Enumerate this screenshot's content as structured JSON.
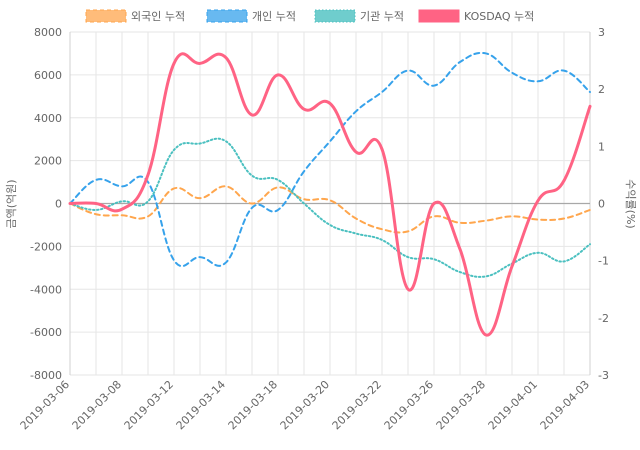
{
  "chart_data": {
    "type": "line",
    "title": "",
    "x": [
      "2019-03-06",
      "2019-03-07",
      "2019-03-08",
      "2019-03-11",
      "2019-03-12",
      "2019-03-13",
      "2019-03-14",
      "2019-03-15",
      "2019-03-18",
      "2019-03-19",
      "2019-03-20",
      "2019-03-21",
      "2019-03-22",
      "2019-03-25",
      "2019-03-26",
      "2019-03-27",
      "2019-03-28",
      "2019-03-29",
      "2019-04-01",
      "2019-04-02",
      "2019-04-03"
    ],
    "x_tick_labels": [
      "2019-03-06",
      "2019-03-08",
      "2019-03-12",
      "2019-03-14",
      "2019-03-18",
      "2019-03-20",
      "2019-03-22",
      "2019-03-26",
      "2019-03-28",
      "2019-04-01",
      "2019-04-03"
    ],
    "y_left": {
      "label": "금액(억원)",
      "min": -8000,
      "max": 8000,
      "ticks": [
        -8000,
        -6000,
        -4000,
        -2000,
        0,
        2000,
        4000,
        6000,
        8000
      ]
    },
    "y_right": {
      "label": "수익률(%)",
      "min": -3,
      "max": 3,
      "ticks": [
        -3,
        -2,
        -1,
        0,
        1,
        2,
        3
      ]
    },
    "series": [
      {
        "name": "외국인 누적",
        "axis": "left",
        "color": "#ffa64d",
        "style": "dashed",
        "values": [
          0,
          -500,
          -550,
          -600,
          700,
          250,
          800,
          0,
          750,
          200,
          150,
          -700,
          -1200,
          -1300,
          -600,
          -900,
          -800,
          -600,
          -750,
          -700,
          -300
        ]
      },
      {
        "name": "개인 누적",
        "axis": "left",
        "color": "#36a2eb",
        "style": "dashed",
        "values": [
          0,
          1100,
          800,
          1000,
          -2650,
          -2500,
          -2750,
          -200,
          -300,
          1500,
          2900,
          4300,
          5200,
          6200,
          5500,
          6600,
          7000,
          6100,
          5700,
          6200,
          5200
        ]
      },
      {
        "name": "기관 누적",
        "axis": "left",
        "color": "#4bc0c0",
        "style": "dotted",
        "values": [
          0,
          -300,
          100,
          100,
          2500,
          2800,
          2900,
          1300,
          1100,
          0,
          -1000,
          -1400,
          -1700,
          -2500,
          -2600,
          -3200,
          -3400,
          -2800,
          -2300,
          -2700,
          -1900
        ]
      },
      {
        "name": "KOSDAQ 누적",
        "axis": "right",
        "color": "#ff6384",
        "style": "solid",
        "values": [
          0,
          0,
          -0.1,
          0.5,
          2.45,
          2.45,
          2.55,
          1.55,
          2.25,
          1.65,
          1.75,
          0.9,
          0.95,
          -1.5,
          0.0,
          -0.8,
          -2.3,
          -1.1,
          0.05,
          0.4,
          1.7
        ]
      }
    ]
  }
}
